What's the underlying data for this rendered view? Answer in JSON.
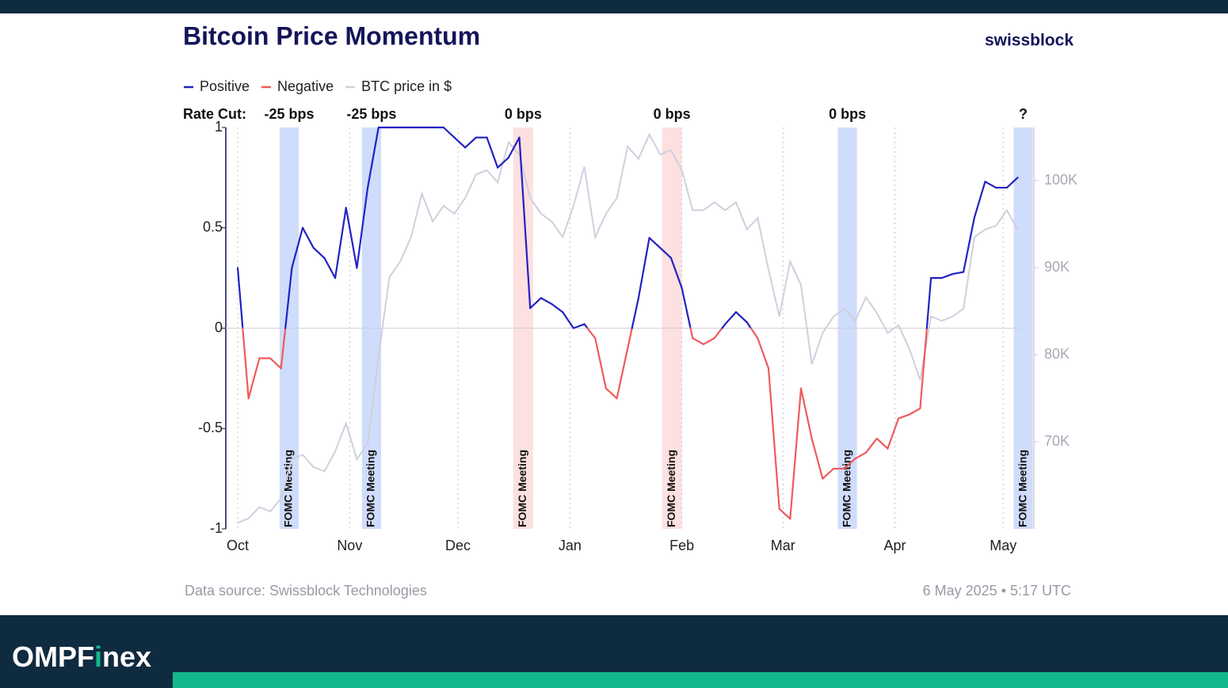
{
  "chart_data": {
    "type": "line",
    "title": "Bitcoin Price Momentum",
    "brand": "swissblock",
    "legend": [
      {
        "label": "Positive",
        "color": "#2222c4"
      },
      {
        "label": "Negative",
        "color": "#ee5b5b"
      }
    ],
    "annotation_lead": "Rate Cut:",
    "band_label": "FOMC Meeting",
    "fomc": [
      {
        "start": 11.6,
        "end": 16.9,
        "color": "#cfdcfb",
        "rate": "-25 bps"
      },
      {
        "start": 34.4,
        "end": 39.7,
        "color": "#cfdcfb",
        "rate": "-25 bps"
      },
      {
        "start": 76.3,
        "end": 81.8,
        "color": "#fde0e0",
        "rate": "0 bps"
      },
      {
        "start": 117.5,
        "end": 123.0,
        "color": "#fde0e0",
        "rate": "0 bps"
      },
      {
        "start": 166.2,
        "end": 171.5,
        "color": "#cfdcfb",
        "rate": "0 bps"
      },
      {
        "start": 214.9,
        "end": 220.2,
        "color": "#cfdcfb",
        "rate": "?"
      }
    ],
    "x": [
      0,
      3,
      6,
      9,
      12,
      15,
      18,
      21,
      24,
      27,
      30,
      33,
      36,
      39,
      42,
      45,
      48,
      51,
      54,
      57,
      60,
      63,
      66,
      69,
      72,
      75,
      78,
      81,
      84,
      87,
      90,
      93,
      96,
      99,
      102,
      105,
      108,
      111,
      114,
      117,
      120,
      123,
      126,
      129,
      132,
      135,
      138,
      141,
      144,
      147,
      150,
      153,
      156,
      159,
      162,
      165,
      168,
      171,
      174,
      177,
      180,
      183,
      186,
      189,
      192,
      195,
      198,
      201,
      204,
      207,
      210,
      213,
      216
    ],
    "momentum": [
      0.3,
      -0.35,
      -0.15,
      -0.15,
      -0.2,
      0.3,
      0.5,
      0.4,
      0.35,
      0.25,
      0.6,
      0.3,
      0.7,
      1.0,
      1.0,
      1.0,
      1.0,
      1.0,
      1.0,
      1.0,
      0.95,
      0.9,
      0.95,
      0.95,
      0.8,
      0.85,
      0.95,
      0.1,
      0.15,
      0.12,
      0.08,
      0.0,
      0.02,
      -0.05,
      -0.3,
      -0.35,
      -0.1,
      0.15,
      0.45,
      0.4,
      0.35,
      0.2,
      -0.05,
      -0.08,
      -0.05,
      0.02,
      0.08,
      0.03,
      -0.05,
      -0.2,
      -0.9,
      -0.95,
      -0.3,
      -0.55,
      -0.75,
      -0.7,
      -0.7,
      -0.65,
      -0.62,
      -0.55,
      -0.6,
      -0.45,
      -0.43,
      -0.4,
      0.25,
      0.25,
      0.27,
      0.28,
      0.55,
      0.73,
      0.7,
      0.7,
      0.75
    ],
    "series": [
      {
        "name": "BTC price in $",
        "color": "#cfd0dd",
        "axis": "y2",
        "values": [
          60700,
          61200,
          62500,
          62000,
          63500,
          68000,
          68500,
          67100,
          66600,
          68900,
          72100,
          68000,
          69800,
          79800,
          88900,
          90700,
          93500,
          98500,
          95300,
          97100,
          96200,
          98000,
          100700,
          101200,
          99800,
          104400,
          103000,
          98000,
          96200,
          95300,
          93500,
          97100,
          101600,
          93500,
          96200,
          98000,
          103900,
          102500,
          105300,
          103000,
          103500,
          101200,
          96600,
          96600,
          97500,
          96600,
          97500,
          94400,
          95700,
          89800,
          84400,
          90700,
          88000,
          78900,
          82500,
          84400,
          85300,
          83900,
          86600,
          84800,
          82500,
          83400,
          80700,
          77100,
          84400,
          83900,
          84400,
          85300,
          93500,
          94400,
          94800,
          96600,
          94400
        ]
      }
    ],
    "xlim": [
      -3.3,
      220.5
    ],
    "xticks": [
      {
        "value": 0,
        "label": "Oct"
      },
      {
        "value": 31,
        "label": "Nov"
      },
      {
        "value": 61,
        "label": "Dec"
      },
      {
        "value": 92,
        "label": "Jan"
      },
      {
        "value": 123,
        "label": "Feb"
      },
      {
        "value": 151,
        "label": "Mar"
      },
      {
        "value": 182,
        "label": "Apr"
      },
      {
        "value": 212,
        "label": "May"
      }
    ],
    "ylim": [
      -1,
      1
    ],
    "yticks": [
      1,
      0.5,
      0,
      -0.5,
      -1
    ],
    "y2lim": [
      60000,
      106100
    ],
    "y2ticks": [
      {
        "value": 70000,
        "label": "70K"
      },
      {
        "value": 80000,
        "label": "80K"
      },
      {
        "value": 90000,
        "label": "90K"
      },
      {
        "value": 100000,
        "label": "100K"
      }
    ],
    "source": "Data source: Swissblock Technologies",
    "timestamp": "6 May 2025 • 5:17 UTC"
  },
  "footer": {
    "brand_start": "OMPF",
    "brand_accent": "i",
    "brand_end": "nex"
  }
}
